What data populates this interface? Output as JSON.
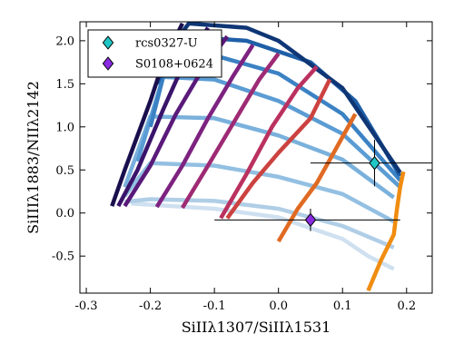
{
  "chart_data": {
    "type": "line",
    "xlabel": "SiIIλ1307/SiIIλ1531",
    "ylabel": "SiIIIλ1883/NIIλ2142",
    "xlim": [
      -0.31,
      0.24
    ],
    "ylim": [
      -0.93,
      2.22
    ],
    "xticks": [
      -0.3,
      -0.2,
      -0.1,
      0.0,
      0.1,
      0.2
    ],
    "xtick_labels": [
      "-0.3",
      "-0.2",
      "-0.1",
      "0.0",
      "0.1",
      "0.2"
    ],
    "yticks": [
      -0.5,
      0.0,
      0.5,
      1.0,
      1.5,
      2.0
    ],
    "ytick_labels": [
      "-0.5",
      "0.0",
      "0.5",
      "1.0",
      "1.5",
      "2.0"
    ],
    "legend": {
      "placement": "top-left"
    },
    "grid_model_lines": [
      {
        "color": "#cfe0f0",
        "points": [
          [
            -0.23,
            0.11
          ],
          [
            -0.1,
            0.05
          ],
          [
            0.0,
            -0.05
          ],
          [
            0.1,
            -0.3
          ],
          [
            0.14,
            -0.5
          ],
          [
            0.18,
            -0.65
          ]
        ]
      },
      {
        "color": "#b0cee6",
        "points": [
          [
            -0.24,
            0.13
          ],
          [
            -0.2,
            0.16
          ],
          [
            -0.1,
            0.14
          ],
          [
            0.0,
            0.05
          ],
          [
            0.1,
            -0.15
          ],
          [
            0.18,
            -0.4
          ]
        ]
      },
      {
        "color": "#93c0e2",
        "points": [
          [
            -0.24,
            0.2
          ],
          [
            -0.2,
            0.58
          ],
          [
            -0.1,
            0.55
          ],
          [
            0.0,
            0.42
          ],
          [
            0.1,
            0.22
          ],
          [
            0.18,
            -0.1
          ]
        ]
      },
      {
        "color": "#7ab1dc",
        "points": [
          [
            -0.24,
            0.3
          ],
          [
            -0.2,
            1.12
          ],
          [
            -0.1,
            1.1
          ],
          [
            0.0,
            0.9
          ],
          [
            0.1,
            0.62
          ],
          [
            0.18,
            0.18
          ]
        ]
      },
      {
        "color": "#5b9cd4",
        "points": [
          [
            -0.22,
            0.6
          ],
          [
            -0.18,
            1.58
          ],
          [
            -0.1,
            1.55
          ],
          [
            0.0,
            1.3
          ],
          [
            0.1,
            0.92
          ],
          [
            0.19,
            0.3
          ]
        ]
      },
      {
        "color": "#3b82c4",
        "points": [
          [
            -0.2,
            1.0
          ],
          [
            -0.17,
            1.87
          ],
          [
            -0.1,
            1.83
          ],
          [
            0.0,
            1.62
          ],
          [
            0.1,
            1.15
          ],
          [
            0.19,
            0.38
          ]
        ]
      },
      {
        "color": "#1f5fa8",
        "points": [
          [
            -0.19,
            1.5
          ],
          [
            -0.15,
            2.05
          ],
          [
            -0.05,
            2.0
          ],
          [
            0.05,
            1.75
          ],
          [
            0.12,
            1.3
          ],
          [
            0.19,
            0.43
          ]
        ]
      },
      {
        "color": "#0f3675",
        "points": [
          [
            -0.17,
            1.9
          ],
          [
            -0.14,
            2.2
          ],
          [
            -0.05,
            2.15
          ],
          [
            0.0,
            2.0
          ],
          [
            0.1,
            1.45
          ],
          [
            0.19,
            0.47
          ]
        ]
      },
      {
        "color": "#1a0f4d",
        "points": [
          [
            -0.26,
            0.08
          ],
          [
            -0.24,
            0.5
          ],
          [
            -0.2,
            1.3
          ],
          [
            -0.18,
            1.75
          ],
          [
            -0.15,
            2.2
          ]
        ]
      },
      {
        "color": "#3a146b",
        "points": [
          [
            -0.25,
            0.08
          ],
          [
            -0.22,
            0.5
          ],
          [
            -0.18,
            1.2
          ],
          [
            -0.15,
            1.7
          ],
          [
            -0.11,
            2.15
          ]
        ]
      },
      {
        "color": "#5a1a7a",
        "points": [
          [
            -0.24,
            0.08
          ],
          [
            -0.2,
            0.55
          ],
          [
            -0.16,
            1.15
          ],
          [
            -0.12,
            1.65
          ],
          [
            -0.08,
            2.05
          ]
        ]
      },
      {
        "color": "#7d2280",
        "points": [
          [
            -0.19,
            0.07
          ],
          [
            -0.15,
            0.55
          ],
          [
            -0.11,
            1.1
          ],
          [
            -0.07,
            1.6
          ],
          [
            -0.04,
            1.95
          ]
        ]
      },
      {
        "color": "#9e2a74",
        "points": [
          [
            -0.15,
            0.06
          ],
          [
            -0.11,
            0.55
          ],
          [
            -0.07,
            1.05
          ],
          [
            -0.03,
            1.55
          ],
          [
            0.0,
            1.85
          ]
        ]
      },
      {
        "color": "#ba3160",
        "points": [
          [
            -0.09,
            -0.06
          ],
          [
            -0.05,
            0.45
          ],
          [
            -0.01,
            1.0
          ],
          [
            0.03,
            1.45
          ],
          [
            0.06,
            1.7
          ]
        ]
      },
      {
        "color": "#cc4240",
        "points": [
          [
            -0.08,
            -0.06
          ],
          [
            -0.04,
            0.35
          ],
          [
            0.0,
            0.7
          ],
          [
            0.05,
            1.1
          ],
          [
            0.08,
            1.55
          ]
        ]
      },
      {
        "color": "#e06a22",
        "points": [
          [
            0.0,
            -0.33
          ],
          [
            0.03,
            0.05
          ],
          [
            0.06,
            0.35
          ],
          [
            0.09,
            0.75
          ],
          [
            0.12,
            1.15
          ]
        ]
      },
      {
        "color": "#f08c10",
        "points": [
          [
            0.14,
            -0.9
          ],
          [
            0.16,
            -0.55
          ],
          [
            0.18,
            -0.25
          ],
          [
            0.185,
            0.05
          ],
          [
            0.19,
            0.3
          ],
          [
            0.195,
            0.48
          ]
        ]
      }
    ],
    "series": [
      {
        "name": "rcs0327-U",
        "x": 0.15,
        "y": 0.58,
        "xerr": [
          0.1,
          0.13
        ],
        "yerr": [
          0.27,
          0.27
        ],
        "color": "#20c5c5",
        "marker": "diamond"
      },
      {
        "name": "S0108+0624",
        "x": 0.05,
        "y": -0.08,
        "xerr": [
          0.15,
          0.14
        ],
        "yerr": [
          0.13,
          0.13
        ],
        "color": "#8a2be2",
        "marker": "diamond"
      }
    ]
  }
}
